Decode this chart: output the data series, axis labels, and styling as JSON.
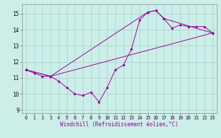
{
  "xlabel": "Windchill (Refroidissement éolien,°C)",
  "bg_color": "#cceee8",
  "line_color": "#990099",
  "grid_color": "#aacccc",
  "xlim": [
    -0.5,
    23.5
  ],
  "ylim": [
    8.8,
    15.6
  ],
  "yticks": [
    9,
    10,
    11,
    12,
    13,
    14,
    15
  ],
  "xticks": [
    0,
    1,
    2,
    3,
    4,
    5,
    6,
    7,
    8,
    9,
    10,
    11,
    12,
    13,
    14,
    15,
    16,
    17,
    18,
    19,
    20,
    21,
    22,
    23
  ],
  "series1_x": [
    0,
    1,
    2,
    3,
    4,
    5,
    6,
    7,
    8,
    9,
    10,
    11,
    12,
    13,
    14,
    15,
    16,
    17,
    18,
    19,
    20,
    21,
    22,
    23
  ],
  "series1_y": [
    11.5,
    11.3,
    11.1,
    11.1,
    10.8,
    10.4,
    10.0,
    9.9,
    10.1,
    9.5,
    10.4,
    11.5,
    11.8,
    12.8,
    14.6,
    15.1,
    15.2,
    14.7,
    14.1,
    14.3,
    14.2,
    14.2,
    14.2,
    13.8
  ],
  "series2_x": [
    0,
    3,
    23
  ],
  "series2_y": [
    11.5,
    11.1,
    13.8
  ],
  "series3_x": [
    0,
    3,
    15,
    16,
    17,
    23
  ],
  "series3_y": [
    11.5,
    11.1,
    15.1,
    15.2,
    14.7,
    13.8
  ]
}
